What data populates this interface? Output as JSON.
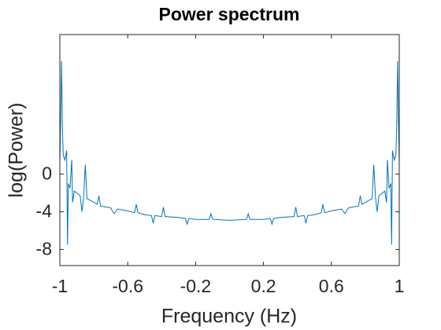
{
  "chart_data": {
    "type": "line",
    "title": "Power spectrum",
    "x_label": "Frequency (Hz)",
    "y_label": "log(Power)",
    "color": "#0072bd",
    "xlim": [
      -1,
      1
    ],
    "xticks": [
      -1,
      -0.6,
      -0.2,
      0.2,
      0.6,
      1
    ],
    "ylim": [
      -9.7,
      14.8
    ],
    "yticks": [
      -8,
      -4,
      0
    ],
    "grid": false,
    "x": [
      -1,
      -0.995,
      -0.99,
      -0.985,
      -0.98,
      -0.97,
      -0.96,
      -0.955,
      -0.95,
      -0.94,
      -0.93,
      -0.925,
      -0.915,
      -0.9,
      -0.88,
      -0.87,
      -0.86,
      -0.85,
      -0.84,
      -0.82,
      -0.8,
      -0.78,
      -0.77,
      -0.76,
      -0.72,
      -0.7,
      -0.68,
      -0.66,
      -0.6,
      -0.56,
      -0.55,
      -0.54,
      -0.5,
      -0.46,
      -0.45,
      -0.44,
      -0.4,
      -0.39,
      -0.38,
      -0.3,
      -0.26,
      -0.25,
      -0.24,
      -0.2,
      -0.12,
      -0.11,
      -0.1,
      0,
      0.1,
      0.11,
      0.12,
      0.2,
      0.24,
      0.25,
      0.26,
      0.3,
      0.38,
      0.39,
      0.4,
      0.44,
      0.45,
      0.46,
      0.5,
      0.54,
      0.55,
      0.56,
      0.6,
      0.66,
      0.68,
      0.7,
      0.72,
      0.76,
      0.77,
      0.78,
      0.8,
      0.82,
      0.84,
      0.85,
      0.86,
      0.87,
      0.88,
      0.9,
      0.915,
      0.925,
      0.93,
      0.94,
      0.95,
      0.955,
      0.96,
      0.97,
      0.98,
      0.985,
      0.99,
      0.995,
      1
    ],
    "values": [
      1,
      6,
      12,
      5,
      2,
      1.5,
      2.5,
      -7.5,
      -1,
      -1.5,
      1.5,
      -3,
      -1.8,
      -2,
      -2.3,
      -4,
      -2.5,
      1,
      -2.6,
      -2.8,
      -3,
      -3.2,
      -2.3,
      -3.4,
      -3.5,
      -3.6,
      -4.2,
      -3.7,
      -3.9,
      -4.1,
      -3.2,
      -4.1,
      -4.3,
      -4.4,
      -5.2,
      -4.4,
      -4.5,
      -3.5,
      -4.5,
      -4.6,
      -4.7,
      -5.3,
      -4.7,
      -4.8,
      -4.8,
      -4.2,
      -4.8,
      -4.9,
      -4.8,
      -4.2,
      -4.8,
      -4.8,
      -4.7,
      -5.3,
      -4.7,
      -4.6,
      -4.5,
      -3.5,
      -4.5,
      -4.4,
      -5.2,
      -4.4,
      -4.3,
      -4.1,
      -3.2,
      -4.1,
      -3.9,
      -3.7,
      -4.2,
      -3.6,
      -3.5,
      -3.4,
      -2.3,
      -3.2,
      -3,
      -2.8,
      -2.6,
      1,
      -2.5,
      -4,
      -2.3,
      -2,
      -1.8,
      -3,
      1.5,
      -1.5,
      -1,
      -7.5,
      2.5,
      1.5,
      2,
      5,
      12,
      6,
      1
    ]
  }
}
